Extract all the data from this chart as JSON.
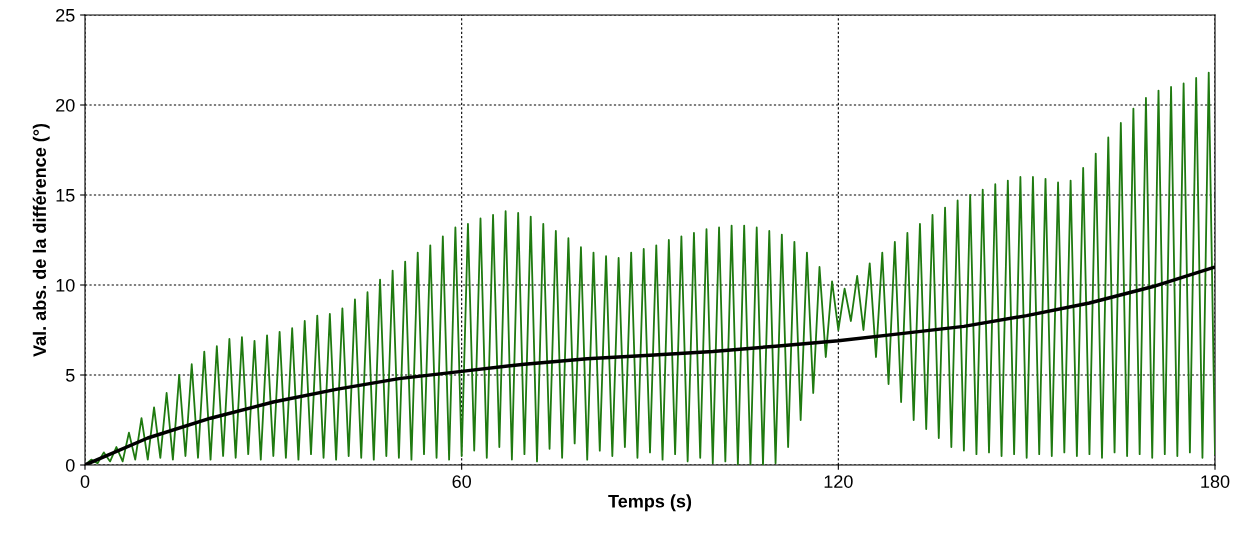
{
  "chart_data": {
    "type": "line",
    "xlabel": "Temps (s)",
    "ylabel": "Val. abs. de la différence (°)",
    "xlim": [
      0,
      180
    ],
    "xticks": [
      0,
      60,
      120,
      180
    ],
    "ylim": [
      0,
      25
    ],
    "yticks": [
      0,
      5,
      10,
      15,
      20,
      25
    ],
    "grid": true,
    "legend": false,
    "marker": "none",
    "series": [
      {
        "color": "#1f7a10",
        "x": [
          0,
          1,
          2,
          3,
          4,
          5,
          6,
          7,
          8,
          9,
          10,
          11,
          12,
          13,
          14,
          15,
          16,
          17,
          18,
          19,
          20,
          21,
          22,
          23,
          24,
          25,
          26,
          27,
          28,
          29,
          30,
          31,
          32,
          33,
          34,
          35,
          36,
          37,
          38,
          39,
          40,
          41,
          42,
          43,
          44,
          45,
          46,
          47,
          48,
          49,
          50,
          51,
          52,
          53,
          54,
          55,
          56,
          57,
          58,
          59,
          60,
          61,
          62,
          63,
          64,
          65,
          66,
          67,
          68,
          69,
          70,
          71,
          72,
          73,
          74,
          75,
          76,
          77,
          78,
          79,
          80,
          81,
          82,
          83,
          84,
          85,
          86,
          87,
          88,
          89,
          90,
          91,
          92,
          93,
          94,
          95,
          96,
          97,
          98,
          99,
          100,
          101,
          102,
          103,
          104,
          105,
          106,
          107,
          108,
          109,
          110,
          111,
          112,
          113,
          114,
          115,
          116,
          117,
          118,
          119,
          120,
          121,
          122,
          123,
          124,
          125,
          126,
          127,
          128,
          129,
          130,
          131,
          132,
          133,
          134,
          135,
          136,
          137,
          138,
          139,
          140,
          141,
          142,
          143,
          144,
          145,
          146,
          147,
          148,
          149,
          150,
          151,
          152,
          153,
          154,
          155,
          156,
          157,
          158,
          159,
          160,
          161,
          162,
          163,
          164,
          165,
          166,
          167,
          168,
          169,
          170,
          171,
          172,
          173,
          174,
          175,
          176,
          177,
          178,
          179,
          180
        ],
        "values": [
          0,
          0.3,
          0.1,
          0.7,
          0.2,
          1.0,
          0.2,
          1.8,
          0.3,
          2.6,
          0.3,
          3.2,
          0.4,
          4.0,
          0.3,
          5.0,
          0.5,
          5.6,
          0.4,
          6.3,
          0.3,
          6.6,
          0.5,
          7.0,
          0.4,
          7.1,
          0.6,
          6.9,
          0.3,
          7.2,
          0.5,
          7.4,
          0.4,
          7.6,
          0.3,
          8.0,
          0.6,
          8.3,
          0.4,
          8.4,
          0.3,
          8.7,
          0.5,
          9.2,
          0.4,
          9.6,
          0.3,
          10.3,
          0.5,
          10.8,
          0.4,
          11.3,
          0.3,
          11.8,
          0.6,
          12.2,
          0.4,
          12.7,
          0.3,
          13.2,
          0.5,
          13.4,
          0.8,
          13.7,
          0.4,
          13.9,
          1.0,
          14.1,
          0.3,
          14.0,
          0.6,
          13.8,
          0.2,
          13.4,
          0.9,
          13.0,
          0.4,
          12.6,
          1.2,
          12.1,
          0.3,
          11.8,
          0.8,
          11.6,
          0.5,
          11.5,
          1.0,
          11.8,
          0.4,
          12.0,
          0.7,
          12.2,
          0.3,
          12.5,
          0.6,
          12.7,
          0.2,
          12.9,
          0.4,
          13.1,
          0.1,
          13.2,
          0.2,
          13.3,
          0,
          13.3,
          0,
          13.2,
          0,
          13.0,
          0.1,
          12.8,
          1.0,
          12.4,
          2.5,
          11.8,
          4.0,
          11.0,
          6.0,
          10.2,
          7.5,
          9.8,
          8.0,
          10.5,
          7.5,
          11.2,
          6.0,
          11.8,
          4.5,
          12.4,
          3.5,
          12.9,
          2.5,
          13.4,
          2.0,
          13.9,
          1.5,
          14.3,
          1.0,
          14.7,
          0.8,
          15.0,
          0.6,
          15.3,
          0.7,
          15.6,
          0.5,
          15.8,
          0.6,
          16.0,
          0.4,
          16.0,
          0.6,
          15.9,
          0.5,
          15.7,
          0.7,
          15.8,
          0.5,
          16.5,
          0.6,
          17.3,
          0.4,
          18.2,
          0.7,
          19.0,
          0.5,
          19.8,
          0.6,
          20.4,
          0.4,
          20.8,
          0.6,
          21.0,
          0.5,
          21.2,
          0.7,
          21.5,
          0.4,
          21.8,
          0.6
        ]
      },
      {
        "color": "#000000",
        "x": [
          0,
          10,
          20,
          30,
          40,
          50,
          60,
          70,
          80,
          90,
          100,
          110,
          120,
          130,
          140,
          150,
          160,
          170,
          180
        ],
        "values": [
          0,
          1.5,
          2.6,
          3.5,
          4.2,
          4.8,
          5.2,
          5.6,
          5.9,
          6.1,
          6.3,
          6.6,
          6.9,
          7.3,
          7.7,
          8.3,
          9.0,
          9.9,
          11.0
        ]
      }
    ]
  }
}
